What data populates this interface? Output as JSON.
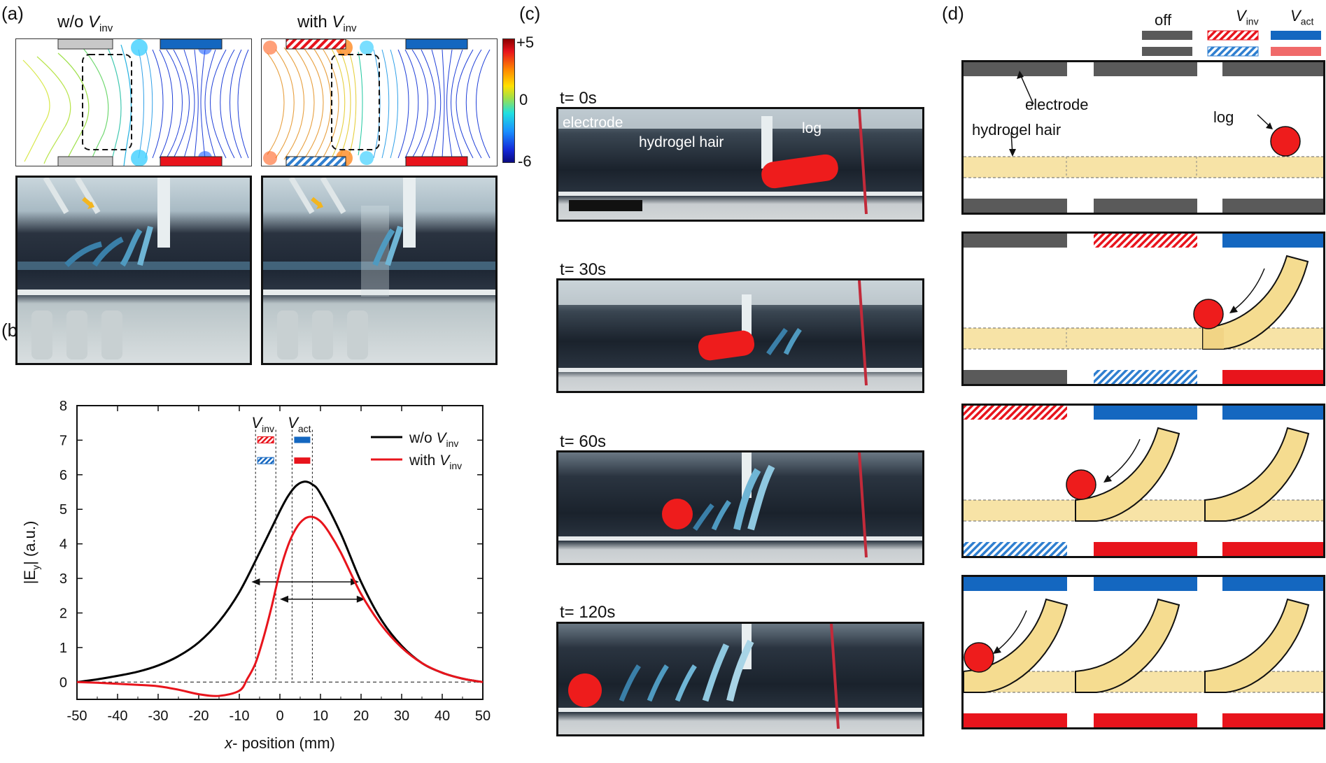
{
  "panels": {
    "a": "(a)",
    "b": "(b)",
    "c": "(c)",
    "d": "(d)"
  },
  "panel_a": {
    "label_without": "w/o ",
    "label_with": "with ",
    "v_symbol": "V",
    "v_sub": "inv",
    "colorbar_max": "+5",
    "colorbar_mid": "0",
    "colorbar_min": "-6"
  },
  "panel_c": {
    "frames": [
      {
        "time": "t= 0s"
      },
      {
        "time": "t= 30s"
      },
      {
        "time": "t= 60s"
      },
      {
        "time": "t= 120s"
      }
    ],
    "label_electrode": "electrode",
    "label_hair": "hydrogel hair",
    "label_log": "log"
  },
  "panel_d": {
    "legend_off": "off",
    "legend_v": "V",
    "legend_inv_sub": "inv",
    "legend_act_sub": "act",
    "label_electrode": "electrode",
    "label_hair": "hydrogel hair",
    "label_log": "log"
  },
  "chart_data": {
    "type": "line",
    "xlabel_italic": "x",
    "xlabel_rest": "- position (mm)",
    "ylabel": "|E",
    "ylabel_sub": "y",
    "ylabel_end": "| (a.u.)",
    "xlim": [
      -50,
      50
    ],
    "ylim": [
      -0.5,
      8
    ],
    "xticks": [
      -50,
      -40,
      -30,
      -20,
      -10,
      0,
      10,
      20,
      30,
      40,
      50
    ],
    "yticks": [
      0,
      1,
      2,
      3,
      4,
      5,
      6,
      7,
      8
    ],
    "marker_inv": {
      "label": "V",
      "sub": "inv",
      "x_range": [
        -6,
        -1
      ]
    },
    "marker_act": {
      "label": "V",
      "sub": "act",
      "x_range": [
        3,
        8
      ]
    },
    "legend": [
      {
        "label": "w/o V",
        "sub": "inv",
        "color": "#000000"
      },
      {
        "label": "with V",
        "sub": "inv",
        "color": "#e8141c"
      }
    ],
    "series": [
      {
        "name": "w/o Vinv",
        "color": "#000000",
        "x": [
          -50,
          -45,
          -40,
          -35,
          -30,
          -25,
          -20,
          -15,
          -10,
          -5,
          0,
          2,
          4,
          6,
          8,
          10,
          15,
          20,
          25,
          30,
          35,
          40,
          45,
          50
        ],
        "y": [
          0,
          0.08,
          0.18,
          0.3,
          0.48,
          0.75,
          1.15,
          1.75,
          2.6,
          3.75,
          4.95,
          5.38,
          5.68,
          5.8,
          5.72,
          5.45,
          4.3,
          2.9,
          1.8,
          1.05,
          0.55,
          0.27,
          0.1,
          0
        ]
      },
      {
        "name": "with Vinv",
        "color": "#e8141c",
        "x": [
          -50,
          -45,
          -40,
          -35,
          -30,
          -25,
          -20,
          -15,
          -10,
          -8,
          -6,
          -4,
          -2,
          0,
          2,
          4,
          6,
          8,
          10,
          12,
          15,
          20,
          25,
          30,
          35,
          40,
          45,
          50
        ],
        "y": [
          0,
          -0.02,
          -0.05,
          -0.08,
          -0.12,
          -0.22,
          -0.35,
          -0.4,
          -0.25,
          0.1,
          0.55,
          1.3,
          2.2,
          3.2,
          3.95,
          4.45,
          4.72,
          4.78,
          4.65,
          4.35,
          3.75,
          2.55,
          1.65,
          1.0,
          0.55,
          0.27,
          0.1,
          0
        ]
      }
    ]
  },
  "colors": {
    "blue": "#1467c0",
    "red": "#e8141c",
    "gray": "#5a5a5a",
    "hair": "#f5dc90",
    "log": "#ee1c1c"
  }
}
